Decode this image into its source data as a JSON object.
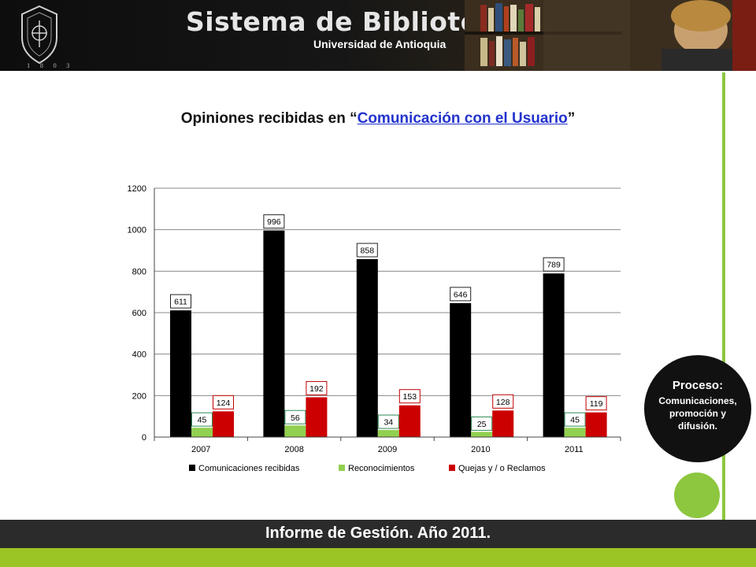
{
  "header": {
    "seal_year": "1 8 0 3",
    "brand_title": "Sistema de Bibliotecas",
    "brand_subtitle": "Universidad de Antioquia"
  },
  "title": {
    "prefix": "Opiniones recibidas en “",
    "link": "Comunicación con el Usuario",
    "suffix": "”"
  },
  "process": {
    "label": "Proceso:",
    "text": "Comunicaciones, promoción y difusión."
  },
  "footer": {
    "text": "Informe de Gestión. Año 2011."
  },
  "colors": {
    "accent_green": "#8dc63f",
    "bottom_bar": "#9bc524",
    "series": [
      "#000000",
      "#92d050",
      "#cc0000"
    ],
    "label_borders": [
      "#222222",
      "#2e8b57",
      "#c00000"
    ]
  },
  "chart_data": {
    "type": "bar",
    "categories": [
      "2007",
      "2008",
      "2009",
      "2010",
      "2011"
    ],
    "series": [
      {
        "name": "Comunicaciones recibidas",
        "values": [
          611,
          996,
          858,
          646,
          789
        ]
      },
      {
        "name": "Reconocimientos",
        "values": [
          45,
          56,
          34,
          25,
          45
        ]
      },
      {
        "name": "Quejas y / o Reclamos",
        "values": [
          124,
          192,
          153,
          128,
          119
        ]
      }
    ],
    "ylim": [
      0,
      1200
    ],
    "yticks": [
      "0",
      "200",
      "400",
      "600",
      "800",
      "1000",
      "1200"
    ],
    "grid": true,
    "legend": "bottom",
    "data_labels": true
  }
}
